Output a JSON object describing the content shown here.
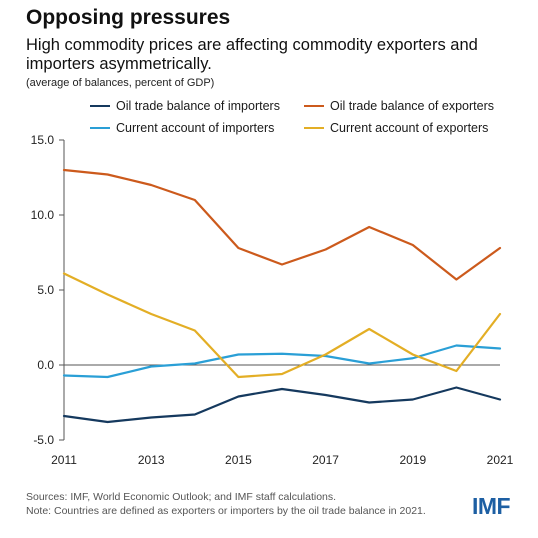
{
  "header": {
    "title": "Opposing pressures",
    "subtitle": "High commodity prices are affecting commodity exporters and importers asymmetrically.",
    "units": "(average of balances, percent of GDP)"
  },
  "footer": {
    "sources": "Sources: IMF, World Economic Outlook; and IMF staff calculations.",
    "note": "Note: Countries are defined as exporters or importers by the oil trade balance in 2021.",
    "logo": "IMF"
  },
  "chart_data": {
    "type": "line",
    "title": "Opposing pressures",
    "x": [
      2011,
      2012,
      2013,
      2014,
      2015,
      2016,
      2017,
      2018,
      2019,
      2020,
      2021
    ],
    "x_tick_labels": [
      "2011",
      "2013",
      "2015",
      "2017",
      "2019",
      "2021"
    ],
    "x_tick_values": [
      2011,
      2013,
      2015,
      2017,
      2019,
      2021
    ],
    "y_tick_labels": [
      "15.0",
      "10.0",
      "5.0",
      "0.0",
      "-5.0"
    ],
    "y_tick_values": [
      15,
      10,
      5,
      0,
      -5
    ],
    "ylim": [
      -5,
      15
    ],
    "xlim": [
      2011,
      2021
    ],
    "grid": false,
    "zero_line": true,
    "legend_position": "top",
    "series": [
      {
        "name": "Oil trade balance of importers",
        "color": "#15395e",
        "values": [
          -3.4,
          -3.8,
          -3.5,
          -3.3,
          -2.1,
          -1.6,
          -2.0,
          -2.5,
          -2.3,
          -1.5,
          -2.3
        ]
      },
      {
        "name": "Oil trade balance of exporters",
        "color": "#cc5a1c",
        "values": [
          13.0,
          12.7,
          12.0,
          11.0,
          7.8,
          6.7,
          7.7,
          9.2,
          8.0,
          5.7,
          7.8
        ]
      },
      {
        "name": "Current account of importers",
        "color": "#2a9fd6",
        "values": [
          -0.7,
          -0.8,
          -0.1,
          0.1,
          0.7,
          0.75,
          0.6,
          0.1,
          0.45,
          1.3,
          1.1
        ]
      },
      {
        "name": "Current account of exporters",
        "color": "#e3ae25",
        "values": [
          6.1,
          4.7,
          3.4,
          2.3,
          -0.8,
          -0.6,
          0.7,
          2.4,
          0.7,
          -0.4,
          3.4
        ]
      }
    ]
  }
}
